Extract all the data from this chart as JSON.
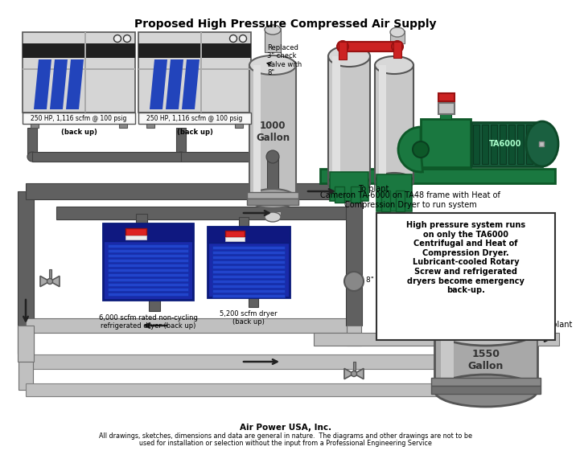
{
  "title": "Proposed High Pressure Compressed Air Supply",
  "bg_color": "#ffffff",
  "info_box_text": "High pressure system runs\non only the TA6000\nCentrifugal and Heat of\nCompression Dryer.\nLubricant-cooled Rotary\nScrew and refrigerated\ndryers become emergency\nback-up.",
  "footer1": "Air Power USA, Inc.",
  "footer2": "All drawings, sketches, dimensions and data are general in nature.  The diagrams and other drawings are not to be",
  "footer3": "used for installation or selection without the input from a Professional Engineering Service",
  "comp1_label1": "250 HP, 1,116 scfm @ 100 psig",
  "comp1_label2": "(back up)",
  "comp2_label1": "250 HP, 1,116 scfm @ 100 psig",
  "comp2_label2": "(back up)",
  "tank1_label": "1000\nGallon",
  "tank2_label": "1550\nGallon",
  "cameron_label": "Cameron TA-6000 on TA48 frame with Heat of\nCompression Dryer to run system",
  "ta6000_label": "TA6000",
  "dryer1_label": "6,000 scfm rated non-cycling\nrefrigerated dryer (back up)",
  "dryer2_label": "5,200 scfm dryer\n(back up)",
  "replaced_label": "Replaced\n3\" check\nvalve with\n8\"",
  "bypass_label": "8\" Bypass Valve",
  "to_plant1": "To plant",
  "to_plant2": "To plant"
}
